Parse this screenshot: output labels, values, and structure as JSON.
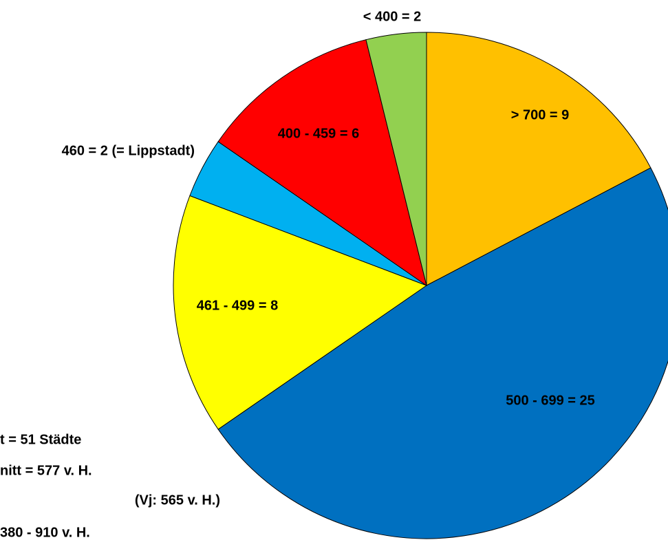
{
  "chart_data": {
    "type": "pie",
    "categories": [
      "> 700 = 9",
      "500 - 699 = 25",
      "461 - 499 = 8",
      "460 = 2 (= Lippstadt)",
      "400 - 459 = 6",
      "< 400 = 2"
    ],
    "values": [
      9,
      25,
      8,
      2,
      6,
      2
    ],
    "colors": [
      "#FFC000",
      "#0070C0",
      "#FFFF00",
      "#00B0F0",
      "#FF0000",
      "#92D050"
    ],
    "annotations": [
      "t = 51 Städte",
      "nitt = 577 v. H.",
      "(Vj: 565 v. H.)",
      "380 - 910 v. H."
    ]
  }
}
